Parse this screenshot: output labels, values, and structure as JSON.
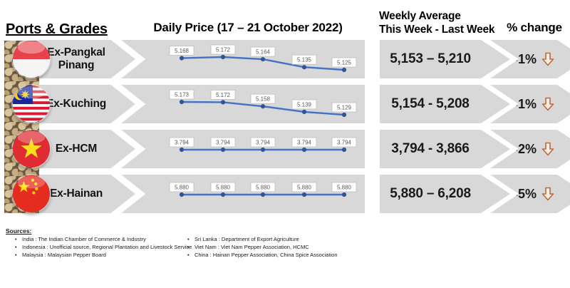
{
  "header": {
    "ports_grades_label": "Ports & Grades",
    "daily_price_label": "Daily Price (17 – 21 October 2022)",
    "weekly_avg_line1": "Weekly Average",
    "weekly_avg_line2": "This Week - Last Week",
    "pct_change_label": "% change"
  },
  "table": {
    "rows": [
      {
        "port": "Ex-Pangkal Pinang",
        "flag": "Indonesia",
        "values": [
          5168,
          5172,
          5164,
          5135,
          5125
        ],
        "labels": [
          "5.168",
          "5.172",
          "5.164",
          "5.135",
          "5.125"
        ],
        "weekly": "5,153 – 5,210",
        "change": "-1%",
        "direction": "down"
      },
      {
        "port": "Ex-Kuching",
        "flag": "Malaysia",
        "values": [
          5173,
          5172,
          5158,
          5139,
          5129
        ],
        "labels": [
          "5.173",
          "5.172",
          "5.158",
          "5.139",
          "5.129"
        ],
        "weekly": "5,154 - 5,208",
        "change": "-1%",
        "direction": "down"
      },
      {
        "port": "Ex-HCM",
        "flag": "Viet Nam",
        "values": [
          3794,
          3794,
          3794,
          3794,
          3794
        ],
        "labels": [
          "3.794",
          "3.794",
          "3.794",
          "3.794",
          "3.794"
        ],
        "weekly": "3,794 - 3,866",
        "change": "-2%",
        "direction": "down"
      },
      {
        "port": "Ex-Hainan",
        "flag": "China",
        "values": [
          5880,
          5880,
          5880,
          5880,
          5880
        ],
        "labels": [
          "5.880",
          "5.880",
          "5.880",
          "5.880",
          "5.880"
        ],
        "weekly": "5,880 – 6,208",
        "change": "-5%",
        "direction": "down"
      }
    ]
  },
  "chart_data": [
    {
      "type": "line",
      "name": "Ex-Pangkal Pinang daily price",
      "date_range": "17 – 21 October 2022",
      "values": [
        5168,
        5172,
        5164,
        5135,
        5125
      ],
      "data_labels": [
        "5.168",
        "5.172",
        "5.164",
        "5.135",
        "5.125"
      ]
    },
    {
      "type": "line",
      "name": "Ex-Kuching daily price",
      "date_range": "17 – 21 October 2022",
      "values": [
        5173,
        5172,
        5158,
        5139,
        5129
      ],
      "data_labels": [
        "5.173",
        "5.172",
        "5.158",
        "5.139",
        "5.129"
      ]
    },
    {
      "type": "line",
      "name": "Ex-HCM daily price",
      "date_range": "17 – 21 October 2022",
      "values": [
        3794,
        3794,
        3794,
        3794,
        3794
      ],
      "data_labels": [
        "3.794",
        "3.794",
        "3.794",
        "3.794",
        "3.794"
      ]
    },
    {
      "type": "line",
      "name": "Ex-Hainan daily price",
      "date_range": "17 – 21 October 2022",
      "values": [
        5880,
        5880,
        5880,
        5880,
        5880
      ],
      "data_labels": [
        "5.880",
        "5.880",
        "5.880",
        "5.880",
        "5.880"
      ]
    }
  ],
  "sources": {
    "heading": "Sources:",
    "col1": [
      "India : The Indian Chamber of Commerce & Industry",
      "Indonesia : Unofficial source, Regional Plantation and Livestock Service",
      "Malaysia : Malaysian Pepper Board"
    ],
    "col2": [
      "Sri Lanka : Department of Export Agriculture",
      "Viet Nam : Viet Nam Pepper Association, HCMC",
      "China : Hainan Pepper Association, China Spice Association"
    ]
  },
  "colors": {
    "band_gray": "#d8d8d8",
    "line_blue": "#4472c4",
    "marker_blue": "#2f5597",
    "arrow_orange": "#bd6a3a"
  }
}
